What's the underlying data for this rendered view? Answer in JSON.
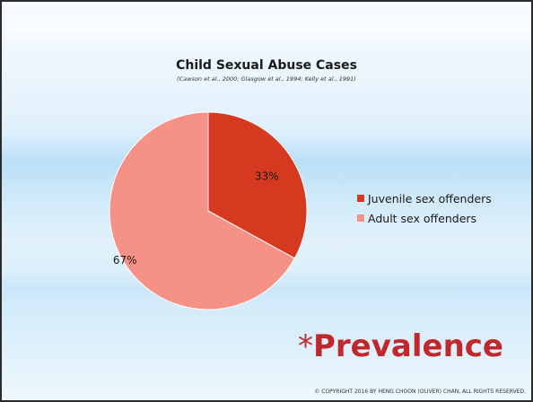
{
  "slide": {
    "prevalence_asterisk": "*",
    "prevalence_text": "Prevalence",
    "prevalence_color": "#c0282c",
    "copyright": "© COPYRIGHT 2016 BY HENG CHOON (OLIVER) CHAN, ALL RIGHTS RESERVED."
  },
  "chart_data": {
    "type": "pie",
    "title": "Child Sexual Abuse Cases",
    "subtitle": "(Cawson et al., 2000; Glasgow et al., 1994; Kelly et al., 1991)",
    "categories": [
      "Juvenile sex offenders",
      "Adult sex offenders"
    ],
    "values": [
      33,
      67
    ],
    "data_labels": [
      "33%",
      "67%"
    ],
    "colors": [
      "#d5391f",
      "#f59186"
    ],
    "legend_position": "right"
  }
}
